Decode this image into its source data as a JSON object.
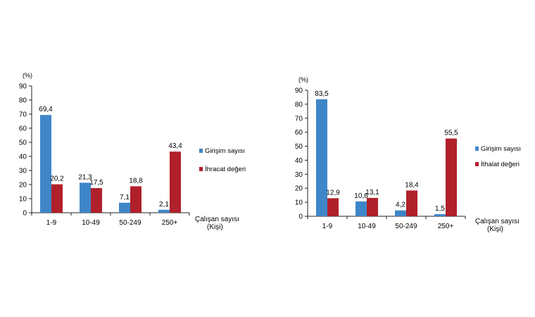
{
  "chart_data": [
    {
      "type": "bar",
      "unit_label": "(%)",
      "categories": [
        "1-9",
        "10-49",
        "50-249",
        "250+"
      ],
      "series": [
        {
          "name": "Girişim sayısı",
          "values": [
            69.4,
            21.3,
            7.1,
            2.1
          ],
          "labels": [
            "69,4",
            "21,3",
            "7,1",
            "2,1"
          ],
          "color": "#3f86c8"
        },
        {
          "name": "İhracat değeri",
          "values": [
            20.2,
            17.5,
            18.8,
            43.4
          ],
          "labels": [
            "20,2",
            "17,5",
            "18,8",
            "43,4"
          ],
          "color": "#b0202a"
        }
      ],
      "xlabel_line1": "Çalışan sayısı",
      "xlabel_line2": "(Kişi)",
      "ylim": [
        0,
        90
      ],
      "yticks": [
        0,
        10,
        20,
        30,
        40,
        50,
        60,
        70,
        80,
        90
      ],
      "grid": false,
      "legend": "right"
    },
    {
      "type": "bar",
      "unit_label": "(%)",
      "categories": [
        "1-9",
        "10-49",
        "50-249",
        "250+"
      ],
      "series": [
        {
          "name": "Girişim sayısı",
          "values": [
            83.5,
            10.6,
            4.2,
            1.5
          ],
          "labels": [
            "83,5",
            "10,6",
            "4,2",
            "1,5"
          ],
          "color": "#3f86c8"
        },
        {
          "name": "İthalat değeri",
          "values": [
            12.9,
            13.1,
            18.4,
            55.5
          ],
          "labels": [
            "12,9",
            "13,1",
            "18,4",
            "55,5"
          ],
          "color": "#b0202a"
        }
      ],
      "xlabel_line1": "Çalışan sayısı",
      "xlabel_line2": "(Kişi)",
      "ylim": [
        0,
        90
      ],
      "yticks": [
        0,
        10,
        20,
        30,
        40,
        50,
        60,
        70,
        80,
        90
      ],
      "grid": false,
      "legend": "right"
    }
  ]
}
